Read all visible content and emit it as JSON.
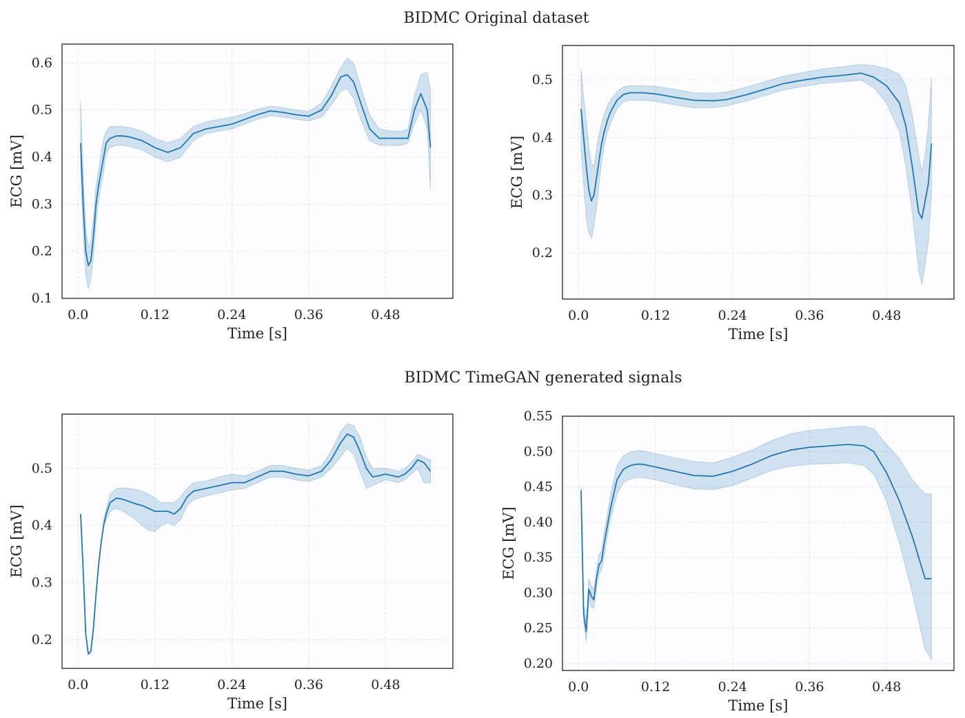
{
  "suptitles": [
    "BIDMC Original dataset",
    "BIDMC TimeGAN generated signals"
  ],
  "colors": {
    "line": "#1f77b4",
    "band": "#1f77b4",
    "grid": "#e3e3ec",
    "plot_bg": "#fdfcff",
    "frame": "#222222"
  },
  "chart_data": [
    {
      "type": "line",
      "title": "",
      "xlabel": "Time [s]",
      "ylabel": "ECG [mV]",
      "xlim": [
        -0.025,
        0.585
      ],
      "ylim": [
        0.1,
        0.64
      ],
      "xticks": [
        0.0,
        0.12,
        0.24,
        0.36,
        0.48
      ],
      "xtick_labels": [
        "0.0",
        "0.12",
        "0.24",
        "0.36",
        "0.48"
      ],
      "yticks": [
        0.1,
        0.2,
        0.3,
        0.4,
        0.5,
        0.6
      ],
      "ytick_labels": [
        "0.1",
        "0.2",
        "0.3",
        "0.4",
        "0.5",
        "0.6"
      ],
      "grid": true,
      "series": [
        {
          "x": [
            0.004,
            0.008,
            0.012,
            0.016,
            0.02,
            0.024,
            0.028,
            0.032,
            0.036,
            0.04,
            0.044,
            0.05,
            0.06,
            0.07,
            0.08,
            0.1,
            0.12,
            0.14,
            0.16,
            0.18,
            0.2,
            0.22,
            0.24,
            0.26,
            0.28,
            0.3,
            0.32,
            0.34,
            0.36,
            0.38,
            0.395,
            0.41,
            0.42,
            0.43,
            0.44,
            0.455,
            0.47,
            0.49,
            0.505,
            0.515,
            0.525,
            0.535,
            0.545,
            0.55
          ],
          "y": [
            0.43,
            0.3,
            0.2,
            0.17,
            0.18,
            0.23,
            0.3,
            0.34,
            0.37,
            0.4,
            0.43,
            0.44,
            0.445,
            0.445,
            0.443,
            0.435,
            0.42,
            0.41,
            0.42,
            0.45,
            0.46,
            0.465,
            0.47,
            0.48,
            0.49,
            0.498,
            0.495,
            0.49,
            0.487,
            0.5,
            0.53,
            0.57,
            0.575,
            0.56,
            0.52,
            0.46,
            0.44,
            0.44,
            0.44,
            0.44,
            0.5,
            0.535,
            0.5,
            0.42
          ],
          "lower": [
            0.37,
            0.24,
            0.15,
            0.12,
            0.14,
            0.19,
            0.26,
            0.31,
            0.34,
            0.37,
            0.41,
            0.42,
            0.425,
            0.425,
            0.423,
            0.415,
            0.4,
            0.39,
            0.4,
            0.435,
            0.45,
            0.455,
            0.46,
            0.47,
            0.48,
            0.488,
            0.485,
            0.48,
            0.477,
            0.485,
            0.51,
            0.54,
            0.545,
            0.525,
            0.485,
            0.435,
            0.425,
            0.425,
            0.425,
            0.43,
            0.47,
            0.5,
            0.46,
            0.33
          ],
          "upper": [
            0.52,
            0.36,
            0.25,
            0.21,
            0.22,
            0.27,
            0.34,
            0.37,
            0.41,
            0.44,
            0.455,
            0.465,
            0.465,
            0.465,
            0.463,
            0.455,
            0.44,
            0.43,
            0.44,
            0.465,
            0.475,
            0.48,
            0.485,
            0.492,
            0.502,
            0.508,
            0.505,
            0.5,
            0.497,
            0.515,
            0.55,
            0.59,
            0.61,
            0.6,
            0.555,
            0.49,
            0.46,
            0.455,
            0.455,
            0.46,
            0.53,
            0.575,
            0.58,
            0.54
          ]
        }
      ]
    },
    {
      "type": "line",
      "title": "",
      "xlabel": "Time [s]",
      "ylabel": "ECG [mV]",
      "xlim": [
        -0.025,
        0.585
      ],
      "ylim": [
        0.12,
        0.56
      ],
      "xticks": [
        0.0,
        0.12,
        0.24,
        0.36,
        0.48
      ],
      "xtick_labels": [
        "0.0",
        "0.12",
        "0.24",
        "0.36",
        "0.48"
      ],
      "yticks": [
        0.2,
        0.3,
        0.4,
        0.5
      ],
      "ytick_labels": [
        "0.2",
        "0.3",
        "0.4",
        "0.5"
      ],
      "grid": true,
      "series": [
        {
          "x": [
            0.004,
            0.008,
            0.012,
            0.016,
            0.02,
            0.024,
            0.028,
            0.032,
            0.036,
            0.04,
            0.045,
            0.05,
            0.06,
            0.07,
            0.08,
            0.1,
            0.12,
            0.15,
            0.18,
            0.21,
            0.23,
            0.26,
            0.29,
            0.32,
            0.35,
            0.38,
            0.41,
            0.44,
            0.46,
            0.48,
            0.5,
            0.51,
            0.52,
            0.53,
            0.535,
            0.54,
            0.545,
            0.55
          ],
          "y": [
            0.45,
            0.4,
            0.35,
            0.31,
            0.29,
            0.3,
            0.33,
            0.36,
            0.39,
            0.41,
            0.43,
            0.445,
            0.465,
            0.475,
            0.478,
            0.478,
            0.476,
            0.47,
            0.465,
            0.464,
            0.466,
            0.474,
            0.484,
            0.494,
            0.5,
            0.505,
            0.508,
            0.512,
            0.505,
            0.49,
            0.46,
            0.42,
            0.35,
            0.27,
            0.26,
            0.29,
            0.32,
            0.39
          ],
          "lower": [
            0.38,
            0.32,
            0.26,
            0.235,
            0.225,
            0.245,
            0.28,
            0.32,
            0.36,
            0.385,
            0.41,
            0.425,
            0.45,
            0.462,
            0.465,
            0.465,
            0.463,
            0.457,
            0.452,
            0.452,
            0.455,
            0.463,
            0.473,
            0.483,
            0.489,
            0.494,
            0.497,
            0.5,
            0.487,
            0.46,
            0.41,
            0.35,
            0.27,
            0.17,
            0.145,
            0.18,
            0.22,
            0.3
          ],
          "upper": [
            0.52,
            0.47,
            0.43,
            0.385,
            0.355,
            0.35,
            0.38,
            0.405,
            0.425,
            0.44,
            0.455,
            0.465,
            0.48,
            0.488,
            0.49,
            0.49,
            0.489,
            0.484,
            0.478,
            0.477,
            0.479,
            0.487,
            0.497,
            0.507,
            0.513,
            0.519,
            0.523,
            0.527,
            0.525,
            0.52,
            0.51,
            0.49,
            0.44,
            0.37,
            0.34,
            0.37,
            0.42,
            0.505
          ]
        }
      ]
    },
    {
      "type": "line",
      "title": "",
      "xlabel": "Time [s]",
      "ylabel": "ECG [mV]",
      "xlim": [
        -0.025,
        0.585
      ],
      "ylim": [
        0.15,
        0.595
      ],
      "xticks": [
        0.0,
        0.12,
        0.24,
        0.36,
        0.48
      ],
      "xtick_labels": [
        "0.0",
        "0.12",
        "0.24",
        "0.36",
        "0.48"
      ],
      "yticks": [
        0.2,
        0.3,
        0.4,
        0.5
      ],
      "ytick_labels": [
        "0.2",
        "0.3",
        "0.4",
        "0.5"
      ],
      "grid": true,
      "series": [
        {
          "x": [
            0.004,
            0.008,
            0.012,
            0.016,
            0.02,
            0.024,
            0.028,
            0.032,
            0.036,
            0.04,
            0.044,
            0.05,
            0.06,
            0.07,
            0.08,
            0.09,
            0.1,
            0.11,
            0.12,
            0.13,
            0.14,
            0.15,
            0.16,
            0.17,
            0.18,
            0.2,
            0.22,
            0.24,
            0.26,
            0.28,
            0.3,
            0.32,
            0.34,
            0.36,
            0.38,
            0.395,
            0.41,
            0.42,
            0.43,
            0.44,
            0.45,
            0.46,
            0.48,
            0.5,
            0.51,
            0.52,
            0.53,
            0.54,
            0.55
          ],
          "y": [
            0.42,
            0.32,
            0.21,
            0.175,
            0.18,
            0.22,
            0.28,
            0.33,
            0.37,
            0.4,
            0.42,
            0.44,
            0.448,
            0.446,
            0.442,
            0.438,
            0.435,
            0.43,
            0.425,
            0.425,
            0.425,
            0.42,
            0.43,
            0.45,
            0.46,
            0.465,
            0.47,
            0.475,
            0.475,
            0.485,
            0.495,
            0.495,
            0.49,
            0.487,
            0.495,
            0.515,
            0.545,
            0.56,
            0.555,
            0.53,
            0.5,
            0.485,
            0.49,
            0.485,
            0.49,
            0.5,
            0.515,
            0.51,
            0.495
          ],
          "lower": [
            0.42,
            0.32,
            0.21,
            0.175,
            0.18,
            0.22,
            0.28,
            0.33,
            0.37,
            0.4,
            0.41,
            0.425,
            0.43,
            0.425,
            0.418,
            0.41,
            0.4,
            0.392,
            0.39,
            0.4,
            0.405,
            0.4,
            0.41,
            0.435,
            0.445,
            0.452,
            0.457,
            0.462,
            0.465,
            0.475,
            0.485,
            0.485,
            0.48,
            0.477,
            0.485,
            0.5,
            0.52,
            0.535,
            0.525,
            0.495,
            0.465,
            0.47,
            0.48,
            0.475,
            0.48,
            0.49,
            0.5,
            0.475,
            0.475
          ],
          "upper": [
            0.42,
            0.32,
            0.21,
            0.175,
            0.18,
            0.22,
            0.28,
            0.33,
            0.37,
            0.41,
            0.43,
            0.455,
            0.465,
            0.466,
            0.465,
            0.463,
            0.46,
            0.455,
            0.448,
            0.44,
            0.44,
            0.44,
            0.45,
            0.465,
            0.475,
            0.478,
            0.485,
            0.49,
            0.487,
            0.495,
            0.505,
            0.505,
            0.5,
            0.497,
            0.505,
            0.53,
            0.565,
            0.578,
            0.575,
            0.555,
            0.52,
            0.5,
            0.5,
            0.495,
            0.5,
            0.51,
            0.525,
            0.52,
            0.515
          ]
        }
      ]
    },
    {
      "type": "line",
      "title": "",
      "xlabel": "Time [s]",
      "ylabel": "ECG [mV]",
      "xlim": [
        -0.025,
        0.585
      ],
      "ylim": [
        0.19,
        0.55
      ],
      "xticks": [
        0.0,
        0.12,
        0.24,
        0.36,
        0.48
      ],
      "xtick_labels": [
        "0.0",
        "0.12",
        "0.24",
        "0.36",
        "0.48"
      ],
      "yticks": [
        0.2,
        0.25,
        0.3,
        0.35,
        0.4,
        0.45,
        0.5,
        0.55
      ],
      "ytick_labels": [
        "0.20",
        "0.25",
        "0.30",
        "0.35",
        "0.40",
        "0.45",
        "0.50",
        "0.55"
      ],
      "grid": true,
      "series": [
        {
          "x": [
            0.004,
            0.008,
            0.012,
            0.016,
            0.02,
            0.024,
            0.028,
            0.032,
            0.036,
            0.04,
            0.045,
            0.05,
            0.06,
            0.07,
            0.08,
            0.09,
            0.1,
            0.12,
            0.15,
            0.18,
            0.21,
            0.24,
            0.27,
            0.3,
            0.33,
            0.36,
            0.39,
            0.42,
            0.445,
            0.46,
            0.48,
            0.5,
            0.52,
            0.54,
            0.55
          ],
          "y": [
            0.445,
            0.27,
            0.245,
            0.305,
            0.295,
            0.29,
            0.32,
            0.34,
            0.345,
            0.37,
            0.395,
            0.42,
            0.46,
            0.475,
            0.48,
            0.482,
            0.482,
            0.478,
            0.472,
            0.466,
            0.465,
            0.472,
            0.482,
            0.494,
            0.502,
            0.506,
            0.508,
            0.51,
            0.508,
            0.5,
            0.47,
            0.43,
            0.38,
            0.32,
            0.32
          ],
          "lower": [
            0.44,
            0.26,
            0.23,
            0.29,
            0.28,
            0.278,
            0.308,
            0.326,
            0.332,
            0.355,
            0.38,
            0.405,
            0.44,
            0.456,
            0.461,
            0.463,
            0.463,
            0.46,
            0.453,
            0.447,
            0.446,
            0.452,
            0.462,
            0.473,
            0.479,
            0.482,
            0.483,
            0.484,
            0.48,
            0.468,
            0.43,
            0.37,
            0.3,
            0.22,
            0.205
          ],
          "upper": [
            0.45,
            0.285,
            0.26,
            0.32,
            0.31,
            0.305,
            0.334,
            0.354,
            0.36,
            0.385,
            0.412,
            0.438,
            0.48,
            0.494,
            0.499,
            0.501,
            0.501,
            0.497,
            0.491,
            0.486,
            0.484,
            0.492,
            0.502,
            0.515,
            0.525,
            0.53,
            0.532,
            0.535,
            0.536,
            0.532,
            0.51,
            0.49,
            0.46,
            0.44,
            0.44
          ]
        }
      ]
    }
  ]
}
